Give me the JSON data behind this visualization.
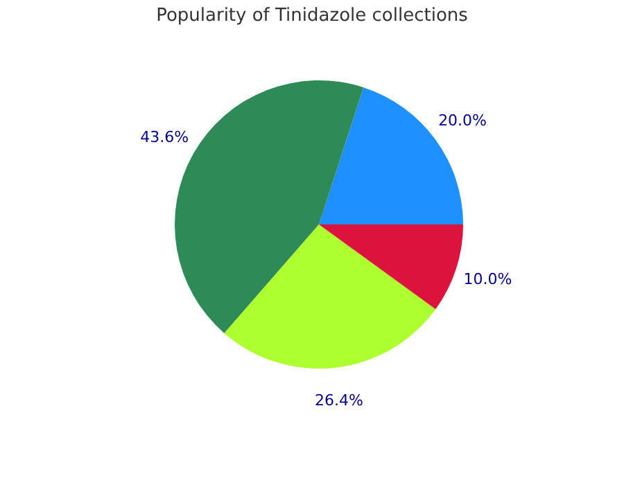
{
  "chart_data": {
    "type": "pie",
    "title": "Popularity of Tinidazole collections",
    "categories": [
      null,
      null,
      null,
      null
    ],
    "values": [
      20.0,
      43.6,
      26.4,
      10.0
    ],
    "colors": [
      "#1e90ff",
      "#2e8b57",
      "#adff2f",
      "#dc143c"
    ],
    "value_labels": [
      "20.0%",
      "43.6%",
      "26.4%",
      "10.0%"
    ],
    "legend": false
  }
}
